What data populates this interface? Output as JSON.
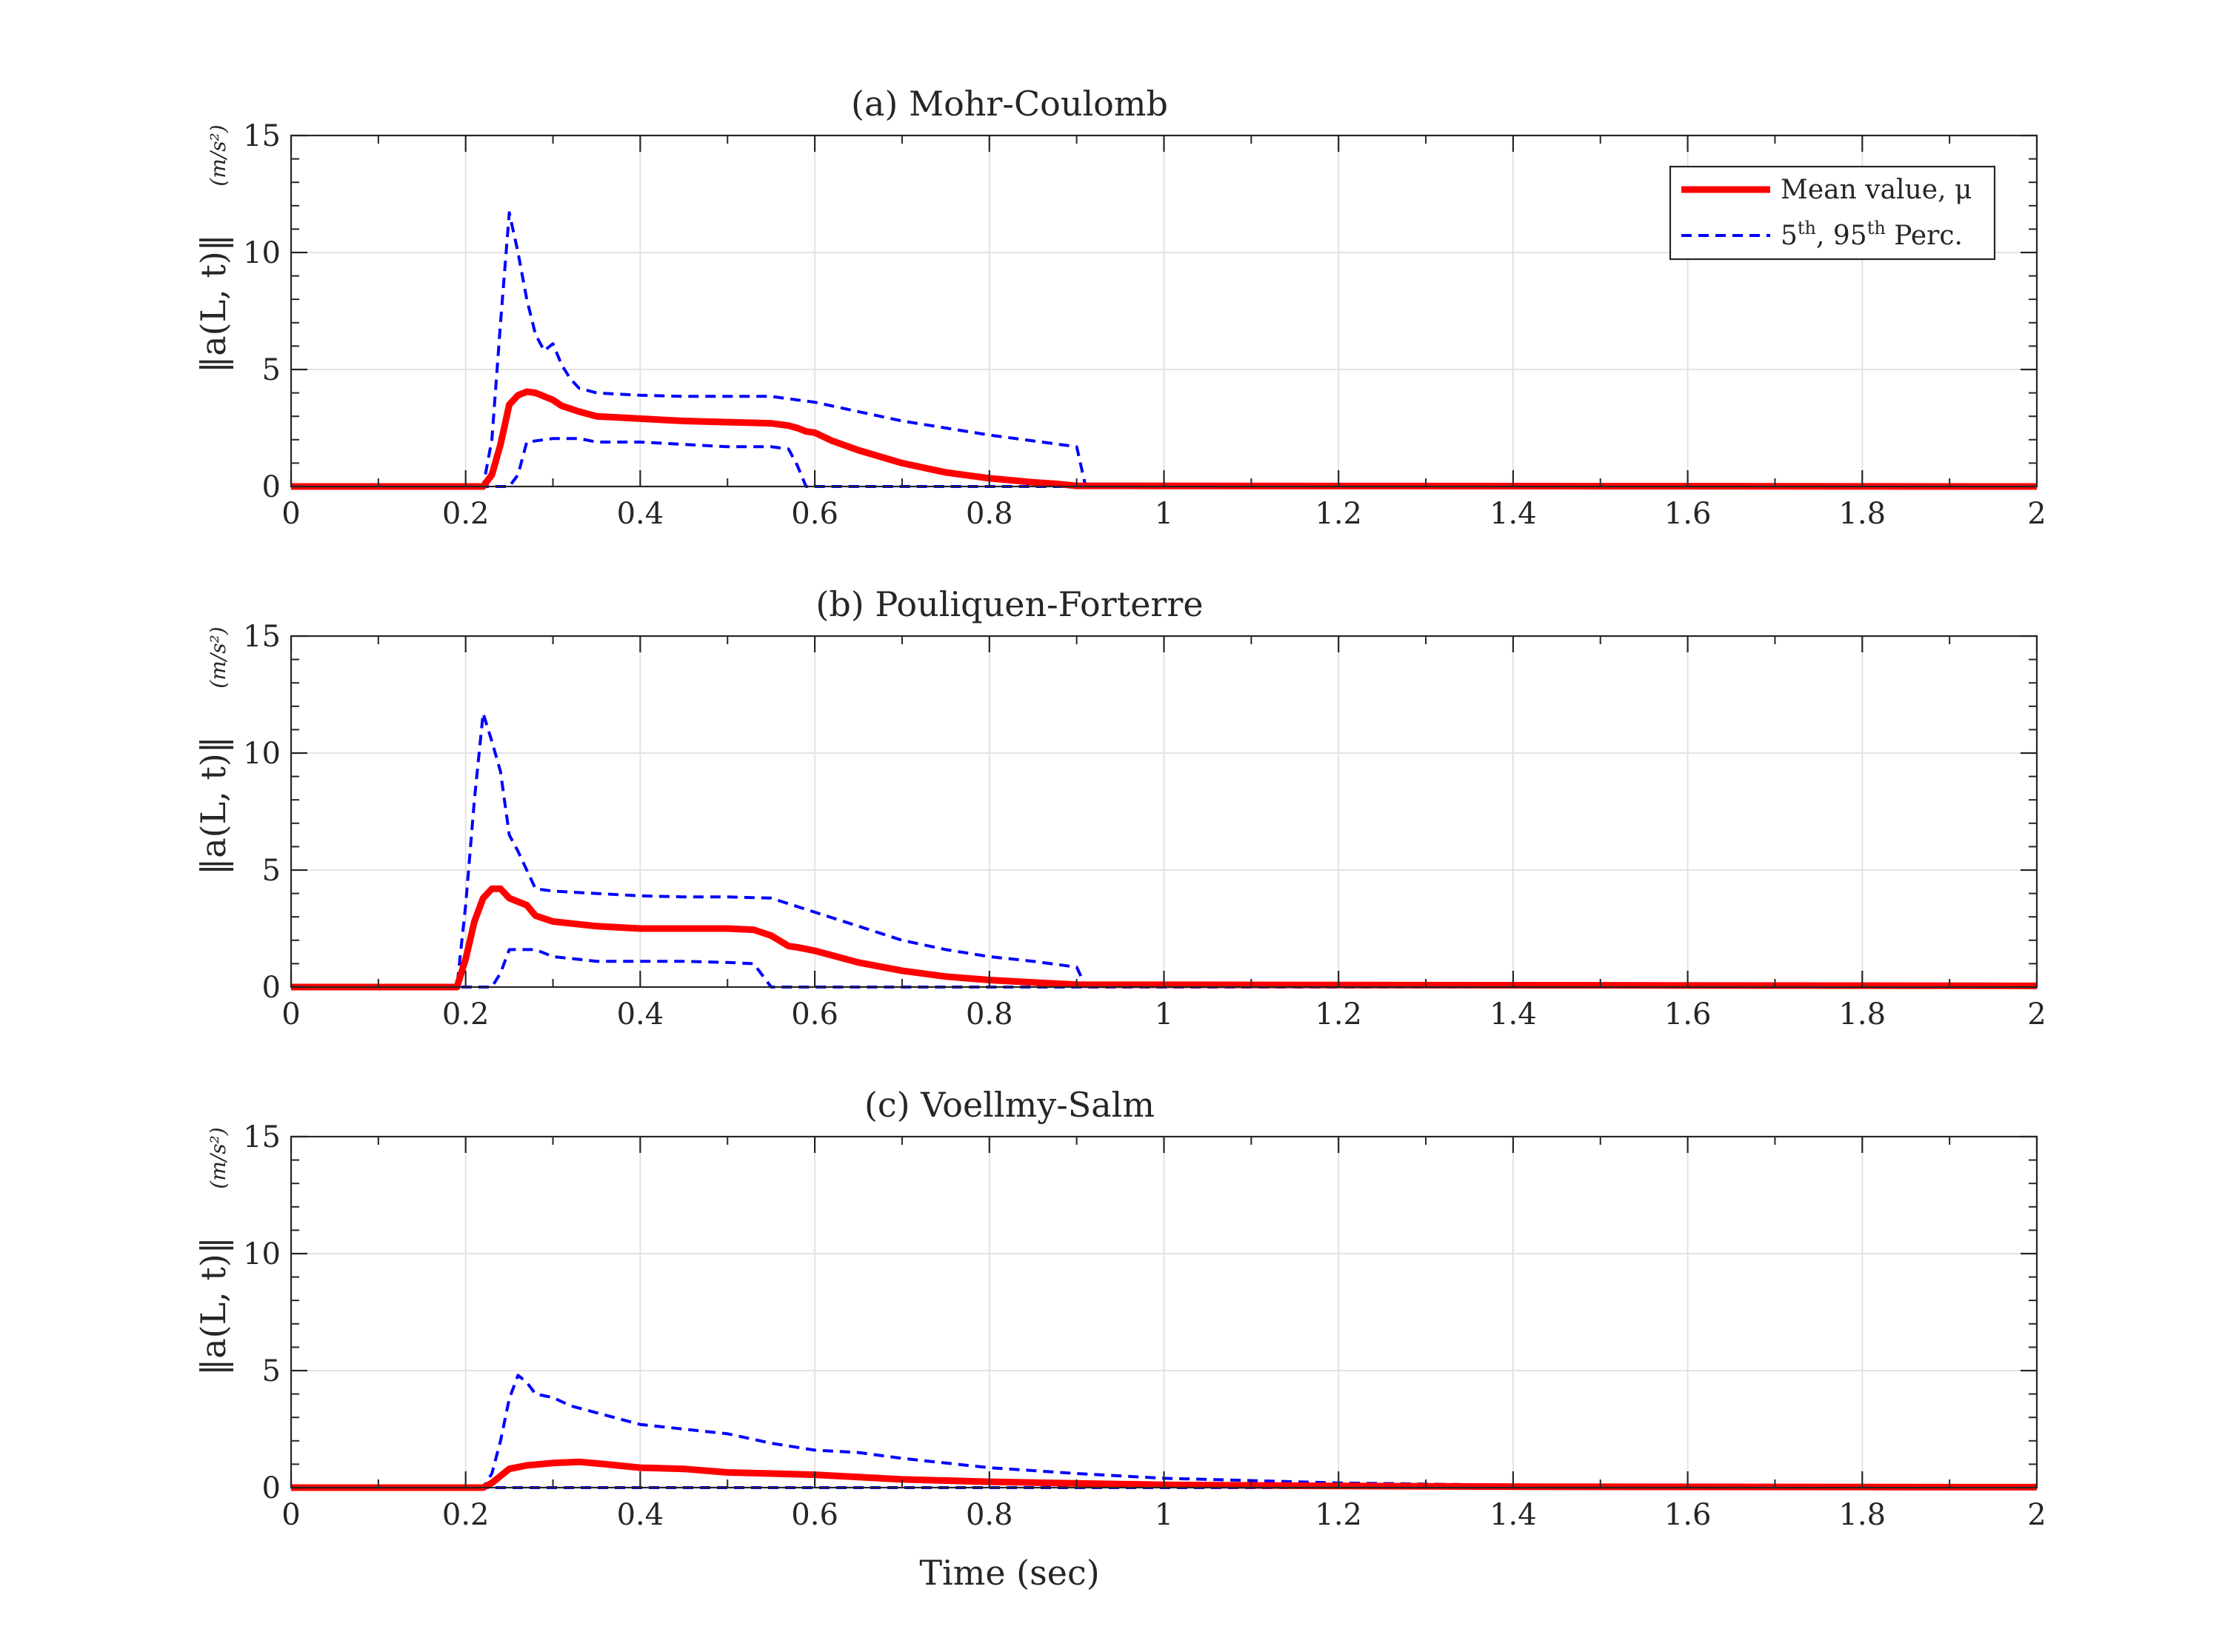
{
  "chart_data": [
    {
      "type": "line",
      "title": "(a) Mohr-Coulomb",
      "ylabel": "‖a(L, t)‖",
      "yunit": "(m/s²)",
      "xlabel": "",
      "xlim": [
        0,
        2
      ],
      "ylim": [
        0,
        15
      ],
      "xticks": [
        "0",
        "0.2",
        "0.4",
        "0.6",
        "0.8",
        "1",
        "1.2",
        "1.4",
        "1.6",
        "1.8",
        "2"
      ],
      "yticks": [
        "0",
        "5",
        "10",
        "15"
      ],
      "grid": true,
      "legend": {
        "placement": "top-right",
        "entries": [
          "Mean value, μ",
          "5th, 95th Perc."
        ]
      },
      "series": [
        {
          "name": "Mean value, μ",
          "style": "solid",
          "color": "#ff0000",
          "x": [
            0,
            0.22,
            0.23,
            0.24,
            0.25,
            0.26,
            0.27,
            0.28,
            0.29,
            0.3,
            0.31,
            0.33,
            0.35,
            0.4,
            0.45,
            0.5,
            0.53,
            0.55,
            0.57,
            0.58,
            0.59,
            0.6,
            0.62,
            0.65,
            0.7,
            0.75,
            0.8,
            0.85,
            0.88,
            0.9,
            2.0
          ],
          "y": [
            0,
            0,
            0.5,
            1.8,
            3.5,
            3.9,
            4.05,
            4.0,
            3.85,
            3.7,
            3.45,
            3.2,
            3.0,
            2.9,
            2.8,
            2.75,
            2.72,
            2.7,
            2.6,
            2.5,
            2.35,
            2.3,
            1.95,
            1.55,
            1.0,
            0.6,
            0.35,
            0.18,
            0.1,
            0.03,
            0.0
          ]
        },
        {
          "name": "95th Perc.",
          "style": "dashed",
          "color": "#0000ff",
          "x": [
            0,
            0.22,
            0.23,
            0.24,
            0.25,
            0.26,
            0.27,
            0.28,
            0.29,
            0.3,
            0.31,
            0.32,
            0.33,
            0.35,
            0.4,
            0.45,
            0.5,
            0.55,
            0.58,
            0.6,
            0.65,
            0.7,
            0.75,
            0.8,
            0.85,
            0.9,
            0.91,
            2.0
          ],
          "y": [
            0,
            0,
            2.0,
            7.0,
            11.7,
            10.0,
            8.0,
            6.5,
            5.8,
            6.1,
            5.2,
            4.6,
            4.2,
            4.0,
            3.9,
            3.85,
            3.85,
            3.85,
            3.7,
            3.6,
            3.2,
            2.8,
            2.5,
            2.2,
            1.95,
            1.7,
            0.05,
            0.0
          ]
        },
        {
          "name": "5th Perc.",
          "style": "dashed",
          "color": "#0000ff",
          "x": [
            0,
            0.25,
            0.26,
            0.27,
            0.3,
            0.33,
            0.35,
            0.4,
            0.45,
            0.5,
            0.55,
            0.57,
            0.58,
            0.59,
            2.0
          ],
          "y": [
            0,
            0,
            0.5,
            1.9,
            2.05,
            2.05,
            1.9,
            1.9,
            1.8,
            1.7,
            1.7,
            1.6,
            0.9,
            0.0,
            0.0
          ]
        }
      ]
    },
    {
      "type": "line",
      "title": "(b) Pouliquen-Forterre",
      "ylabel": "‖a(L, t)‖",
      "yunit": "(m/s²)",
      "xlabel": "",
      "xlim": [
        0,
        2
      ],
      "ylim": [
        0,
        15
      ],
      "xticks": [
        "0",
        "0.2",
        "0.4",
        "0.6",
        "0.8",
        "1",
        "1.2",
        "1.4",
        "1.6",
        "1.8",
        "2"
      ],
      "yticks": [
        "0",
        "5",
        "10",
        "15"
      ],
      "grid": true,
      "series": [
        {
          "name": "Mean value, μ",
          "style": "solid",
          "color": "#ff0000",
          "x": [
            0,
            0.19,
            0.2,
            0.21,
            0.22,
            0.23,
            0.24,
            0.25,
            0.27,
            0.28,
            0.3,
            0.35,
            0.4,
            0.45,
            0.5,
            0.53,
            0.55,
            0.57,
            0.58,
            0.6,
            0.65,
            0.7,
            0.75,
            0.8,
            0.85,
            0.9,
            2.0
          ],
          "y": [
            0,
            0,
            1.2,
            2.8,
            3.8,
            4.2,
            4.2,
            3.8,
            3.5,
            3.05,
            2.8,
            2.6,
            2.5,
            2.5,
            2.5,
            2.45,
            2.2,
            1.75,
            1.7,
            1.55,
            1.05,
            0.7,
            0.45,
            0.3,
            0.2,
            0.1,
            0.05
          ]
        },
        {
          "name": "95th Perc.",
          "style": "dashed",
          "color": "#0000ff",
          "x": [
            0,
            0.19,
            0.2,
            0.21,
            0.22,
            0.23,
            0.24,
            0.25,
            0.26,
            0.27,
            0.28,
            0.3,
            0.35,
            0.4,
            0.45,
            0.5,
            0.55,
            0.6,
            0.65,
            0.7,
            0.75,
            0.8,
            0.85,
            0.9,
            0.91,
            2.0
          ],
          "y": [
            0,
            0,
            3.5,
            8.0,
            11.7,
            10.5,
            9.2,
            6.5,
            5.8,
            5.0,
            4.2,
            4.1,
            4.0,
            3.9,
            3.85,
            3.85,
            3.8,
            3.2,
            2.6,
            2.0,
            1.6,
            1.3,
            1.1,
            0.85,
            0.05,
            0.0
          ]
        },
        {
          "name": "5th Perc.",
          "style": "dashed",
          "color": "#0000ff",
          "x": [
            0,
            0.23,
            0.24,
            0.25,
            0.28,
            0.3,
            0.35,
            0.4,
            0.45,
            0.5,
            0.53,
            0.54,
            0.55,
            2.0
          ],
          "y": [
            0,
            0,
            0.6,
            1.6,
            1.6,
            1.3,
            1.1,
            1.1,
            1.1,
            1.05,
            1.0,
            0.5,
            0.0,
            0.0
          ]
        }
      ]
    },
    {
      "type": "line",
      "title": "(c) Voellmy-Salm",
      "ylabel": "‖a(L, t)‖",
      "yunit": "(m/s²)",
      "xlabel": "Time (sec)",
      "xlim": [
        0,
        2
      ],
      "ylim": [
        0,
        15
      ],
      "xticks": [
        "0",
        "0.2",
        "0.4",
        "0.6",
        "0.8",
        "1",
        "1.2",
        "1.4",
        "1.6",
        "1.8",
        "2"
      ],
      "yticks": [
        "0",
        "5",
        "10",
        "15"
      ],
      "grid": true,
      "series": [
        {
          "name": "Mean value, μ",
          "style": "solid",
          "color": "#ff0000",
          "x": [
            0,
            0.22,
            0.23,
            0.24,
            0.25,
            0.27,
            0.3,
            0.33,
            0.36,
            0.4,
            0.45,
            0.5,
            0.55,
            0.6,
            0.65,
            0.7,
            0.8,
            0.9,
            1.0,
            1.2,
            1.4,
            2.0
          ],
          "y": [
            0,
            0,
            0.2,
            0.5,
            0.8,
            0.95,
            1.05,
            1.1,
            1.0,
            0.85,
            0.8,
            0.65,
            0.6,
            0.55,
            0.45,
            0.35,
            0.25,
            0.18,
            0.12,
            0.07,
            0.04,
            0.02
          ]
        },
        {
          "name": "95th Perc.",
          "style": "dashed",
          "color": "#0000ff",
          "x": [
            0,
            0.22,
            0.23,
            0.24,
            0.25,
            0.26,
            0.27,
            0.28,
            0.3,
            0.32,
            0.35,
            0.4,
            0.45,
            0.5,
            0.55,
            0.6,
            0.65,
            0.7,
            0.75,
            0.8,
            0.9,
            1.0,
            1.1,
            1.2,
            1.4,
            1.6,
            1.8,
            2.0
          ],
          "y": [
            0,
            0,
            0.6,
            2.0,
            3.8,
            4.8,
            4.5,
            4.0,
            3.85,
            3.5,
            3.2,
            2.7,
            2.5,
            2.3,
            1.9,
            1.6,
            1.5,
            1.25,
            1.05,
            0.85,
            0.6,
            0.4,
            0.3,
            0.2,
            0.1,
            0.06,
            0.04,
            0.03
          ]
        },
        {
          "name": "5th Perc.",
          "style": "dashed",
          "color": "#0000ff",
          "x": [
            0,
            2.0
          ],
          "y": [
            0,
            0
          ]
        }
      ]
    }
  ],
  "legend_entries": {
    "mean_label": "Mean value, μ",
    "perc_label_a": "5",
    "perc_sup_a": "th",
    "perc_mid": ", 95",
    "perc_sup_b": "th",
    "perc_tail": " Perc."
  },
  "colors": {
    "mean": "#ff0000",
    "percentile": "#0000ff",
    "axes": "#262626",
    "grid": "#e3e3e3"
  }
}
